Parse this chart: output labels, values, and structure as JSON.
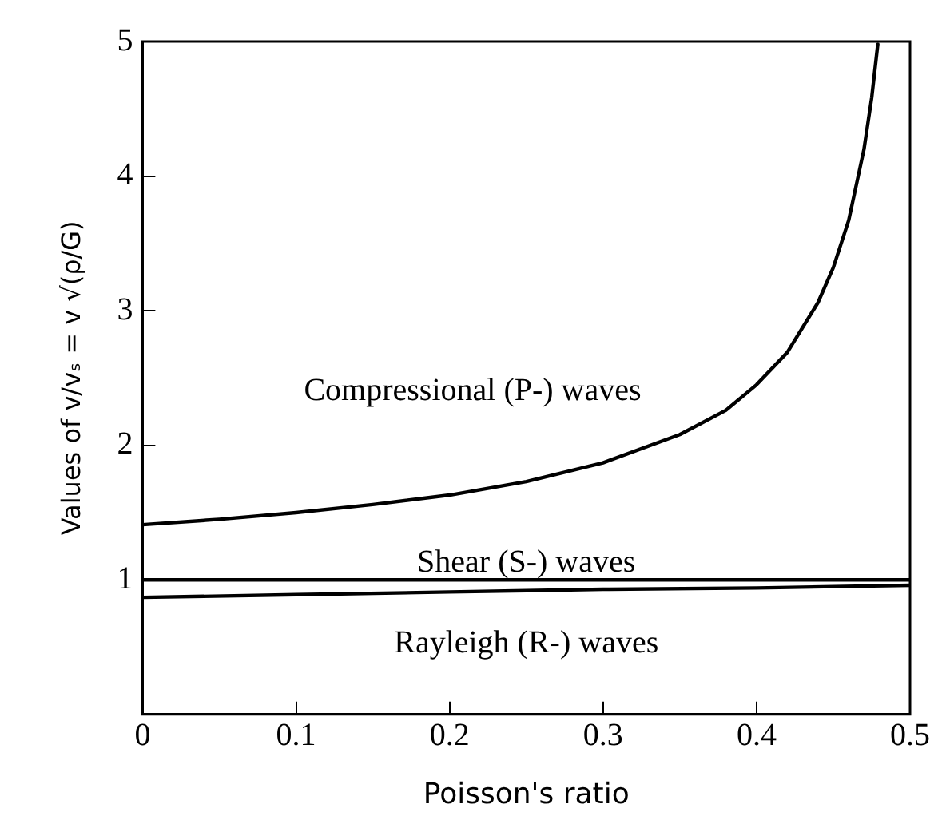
{
  "chart_data": {
    "type": "line",
    "xlabel": "Poisson's ratio",
    "ylabel": "Values of v/vₛ = v √(ρ/G)",
    "xlim": [
      0,
      0.5
    ],
    "xticks": [
      0,
      0.1,
      0.2,
      0.3,
      0.4,
      0.5
    ],
    "ylim": [
      0,
      5
    ],
    "yticks": [
      {
        "value": 0,
        "label": null
      },
      1,
      2,
      3,
      4,
      5
    ],
    "grid": false,
    "legend": false,
    "marker": "none",
    "line_style": "solid",
    "series": [
      {
        "name": "Compressional (P-) waves",
        "color": "#000000",
        "x": [
          0,
          0.05,
          0.1,
          0.15,
          0.2,
          0.25,
          0.3,
          0.35,
          0.38,
          0.4,
          0.42,
          0.44,
          0.45,
          0.46,
          0.47,
          0.475,
          0.479
        ],
        "values": [
          1.41,
          1.45,
          1.5,
          1.56,
          1.63,
          1.73,
          1.87,
          2.08,
          2.26,
          2.45,
          2.69,
          3.06,
          3.32,
          3.67,
          4.2,
          4.58,
          4.98
        ]
      },
      {
        "name": "Shear (S-) waves",
        "color": "#000000",
        "x": [
          0,
          0.5
        ],
        "values": [
          1,
          1
        ]
      },
      {
        "name": "Rayleigh (R-) waves",
        "color": "#000000",
        "x": [
          0,
          0.1,
          0.2,
          0.25,
          0.3,
          0.4,
          0.5
        ],
        "values": [
          0.87,
          0.89,
          0.91,
          0.92,
          0.93,
          0.94,
          0.96
        ]
      }
    ]
  }
}
